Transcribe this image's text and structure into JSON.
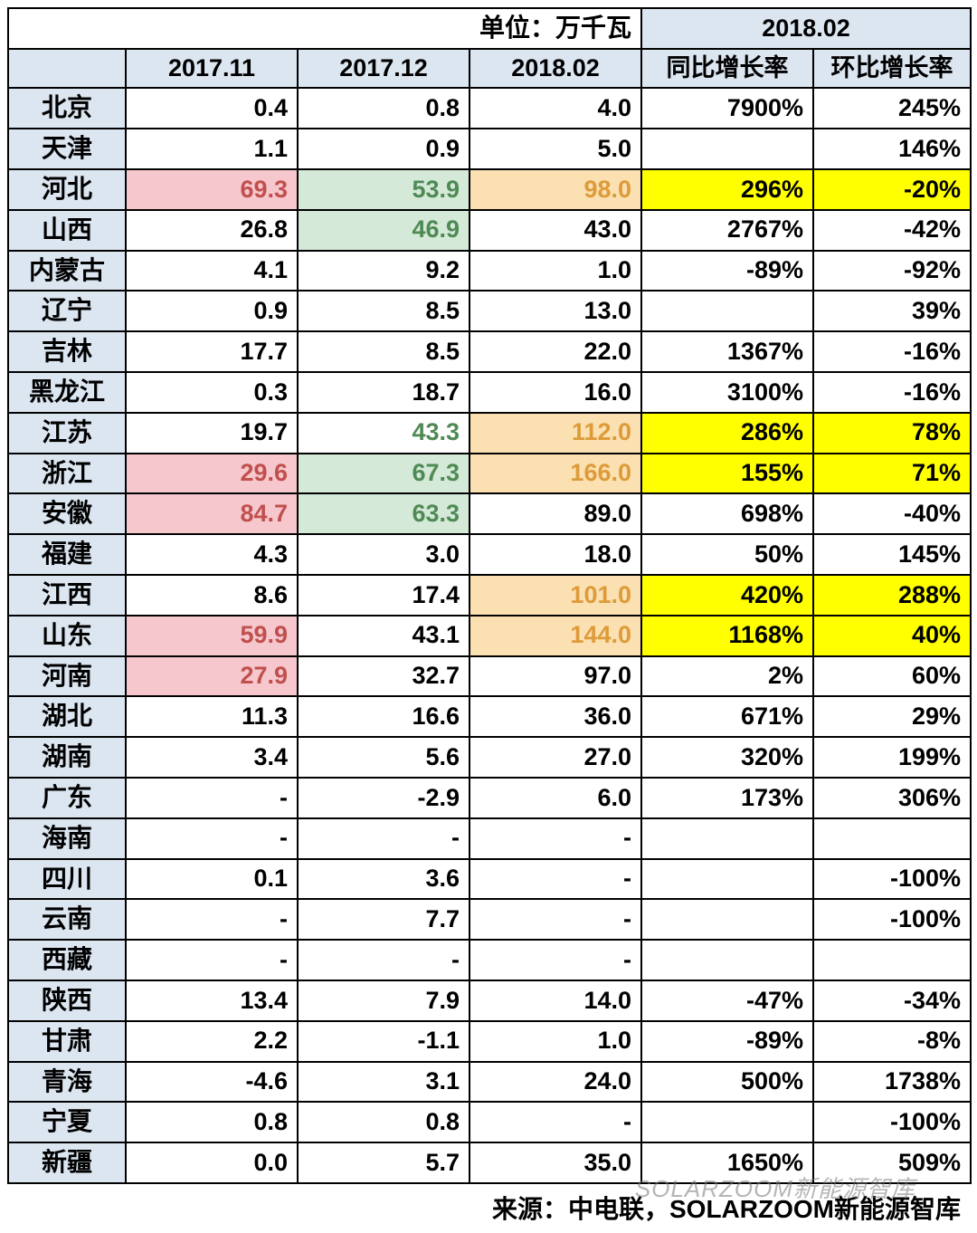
{
  "unit_label": "单位：万千瓦",
  "group_header": "2018.02",
  "columns": [
    "2017.11",
    "2017.12",
    "2018.02",
    "同比增长率",
    "环比增长率"
  ],
  "source_label": "来源：中电联，SOLARZOOM新能源智库",
  "watermark": "SOLARZOOM新能源智库",
  "colors": {
    "header_bg": "#dce6f1",
    "pink_bg": "#f7c7ce",
    "pink_text": "#c0504d",
    "green_bg": "#d4e9d8",
    "green_text": "#4f8a54",
    "orange_bg": "#fbe0b1",
    "orange_text": "#dd9b39",
    "yellow_bg": "#ffff00",
    "border": "#000000",
    "background": "#ffffff"
  },
  "fontsize": {
    "cell": 27,
    "header": 28
  },
  "rows": [
    {
      "name": "北京",
      "c1": "0.4",
      "c2": "0.8",
      "c3": "4.0",
      "c4": "7900%",
      "c5": "245%"
    },
    {
      "name": "天津",
      "c1": "1.1",
      "c2": "0.9",
      "c3": "5.0",
      "c4": "",
      "c5": "146%"
    },
    {
      "name": "河北",
      "c1": "69.3",
      "c1_cls": "pink",
      "c2": "53.9",
      "c2_cls": "green",
      "c3": "98.0",
      "c3_cls": "orange",
      "c4": "296%",
      "c4_cls": "yellow",
      "c5": "-20%",
      "c5_cls": "yellow"
    },
    {
      "name": "山西",
      "c1": "26.8",
      "c2": "46.9",
      "c2_cls": "green",
      "c3": "43.0",
      "c4": "2767%",
      "c5": "-42%"
    },
    {
      "name": "内蒙古",
      "c1": "4.1",
      "c2": "9.2",
      "c3": "1.0",
      "c4": "-89%",
      "c5": "-92%"
    },
    {
      "name": "辽宁",
      "c1": "0.9",
      "c2": "8.5",
      "c3": "13.0",
      "c4": "",
      "c5": "39%"
    },
    {
      "name": "吉林",
      "c1": "17.7",
      "c2": "8.5",
      "c3": "22.0",
      "c4": "1367%",
      "c5": "-16%"
    },
    {
      "name": "黑龙江",
      "c1": "0.3",
      "c2": "18.7",
      "c3": "16.0",
      "c4": "3100%",
      "c5": "-16%"
    },
    {
      "name": "江苏",
      "c1": "19.7",
      "c2": "43.3",
      "c2_cls": "greentxt",
      "c3": "112.0",
      "c3_cls": "orange",
      "c4": "286%",
      "c4_cls": "yellow",
      "c5": "78%",
      "c5_cls": "yellow"
    },
    {
      "name": "浙江",
      "c1": "29.6",
      "c1_cls": "pink",
      "c2": "67.3",
      "c2_cls": "green",
      "c3": "166.0",
      "c3_cls": "orange",
      "c4": "155%",
      "c4_cls": "yellow",
      "c5": "71%",
      "c5_cls": "yellow"
    },
    {
      "name": "安徽",
      "c1": "84.7",
      "c1_cls": "pink",
      "c2": "63.3",
      "c2_cls": "green",
      "c3": "89.0",
      "c4": "698%",
      "c5": "-40%"
    },
    {
      "name": "福建",
      "c1": "4.3",
      "c2": "3.0",
      "c3": "18.0",
      "c4": "50%",
      "c5": "145%"
    },
    {
      "name": "江西",
      "c1": "8.6",
      "c2": "17.4",
      "c3": "101.0",
      "c3_cls": "orange",
      "c4": "420%",
      "c4_cls": "yellow",
      "c5": "288%",
      "c5_cls": "yellow"
    },
    {
      "name": "山东",
      "c1": "59.9",
      "c1_cls": "pink",
      "c2": "43.1",
      "c3": "144.0",
      "c3_cls": "orange",
      "c4": "1168%",
      "c4_cls": "yellow",
      "c5": "40%",
      "c5_cls": "yellow"
    },
    {
      "name": "河南",
      "c1": "27.9",
      "c1_cls": "pink",
      "c2": "32.7",
      "c3": "97.0",
      "c4": "2%",
      "c5": "60%"
    },
    {
      "name": "湖北",
      "c1": "11.3",
      "c2": "16.6",
      "c3": "36.0",
      "c4": "671%",
      "c5": "29%"
    },
    {
      "name": "湖南",
      "c1": "3.4",
      "c2": "5.6",
      "c3": "27.0",
      "c4": "320%",
      "c5": "199%"
    },
    {
      "name": "广东",
      "c1": "-",
      "c2": "-2.9",
      "c3": "6.0",
      "c4": "173%",
      "c5": "306%"
    },
    {
      "name": "海南",
      "c1": "-",
      "c2": "-",
      "c3": "-",
      "c4": "",
      "c5": ""
    },
    {
      "name": "四川",
      "c1": "0.1",
      "c2": "3.6",
      "c3": "-",
      "c4": "",
      "c5": "-100%"
    },
    {
      "name": "云南",
      "c1": "-",
      "c2": "7.7",
      "c3": "-",
      "c4": "",
      "c5": "-100%"
    },
    {
      "name": "西藏",
      "c1": "-",
      "c2": "-",
      "c3": "-",
      "c4": "",
      "c5": ""
    },
    {
      "name": "陕西",
      "c1": "13.4",
      "c2": "7.9",
      "c3": "14.0",
      "c4": "-47%",
      "c5": "-34%"
    },
    {
      "name": "甘肃",
      "c1": "2.2",
      "c2": "-1.1",
      "c3": "1.0",
      "c4": "-89%",
      "c5": "-8%"
    },
    {
      "name": "青海",
      "c1": "-4.6",
      "c2": "3.1",
      "c3": "24.0",
      "c4": "500%",
      "c5": "1738%"
    },
    {
      "name": "宁夏",
      "c1": "0.8",
      "c2": "0.8",
      "c3": "-",
      "c4": "",
      "c5": "-100%"
    },
    {
      "name": "新疆",
      "c1": "0.0",
      "c2": "5.7",
      "c3": "35.0",
      "c4": "1650%",
      "c5": "509%"
    }
  ]
}
